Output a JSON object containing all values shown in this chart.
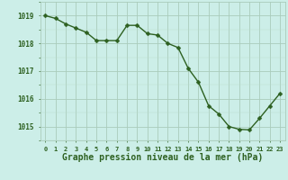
{
  "x": [
    0,
    1,
    2,
    3,
    4,
    5,
    6,
    7,
    8,
    9,
    10,
    11,
    12,
    13,
    14,
    15,
    16,
    17,
    18,
    19,
    20,
    21,
    22,
    23
  ],
  "y": [
    1019.0,
    1018.9,
    1018.7,
    1018.55,
    1018.4,
    1018.1,
    1018.1,
    1018.1,
    1018.65,
    1018.65,
    1018.35,
    1018.3,
    1018.0,
    1017.85,
    1017.1,
    1016.6,
    1015.75,
    1015.45,
    1015.0,
    1014.9,
    1014.88,
    1015.3,
    1015.75,
    1016.2
  ],
  "line_color": "#2d6020",
  "marker_color": "#2d6020",
  "background_color": "#cceee8",
  "grid_color_major": "#aaccbb",
  "grid_color_minor": "#bbddcc",
  "xlabel": "Graphe pression niveau de la mer (hPa)",
  "xlabel_color": "#2d6020",
  "xlabel_fontsize": 7,
  "tick_color": "#2d6020",
  "ylim": [
    1014.5,
    1019.5
  ],
  "xlim": [
    -0.5,
    23.5
  ],
  "line_width": 1.0,
  "marker_size": 2.5,
  "yticks": [
    1015,
    1016,
    1017,
    1018,
    1019
  ]
}
